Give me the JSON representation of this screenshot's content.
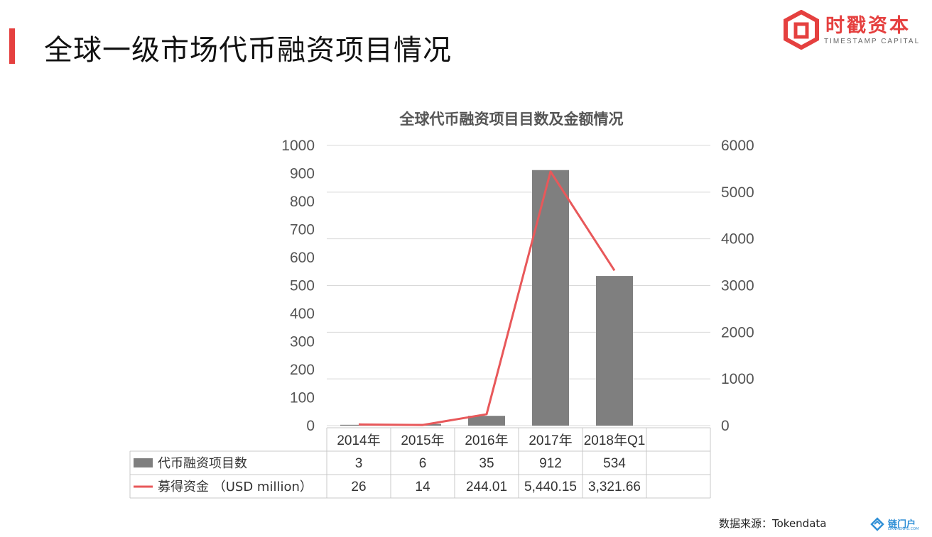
{
  "slide": {
    "title": "全球一级市场代币融资项目情况",
    "source": "数据来源：Tokendata"
  },
  "logo": {
    "name": "时戳资本",
    "subtitle": "TIMESTAMP CAPITAL",
    "color": "#e5403f"
  },
  "footer_logo": {
    "name": "链门户",
    "subtitle": "LIANMENHU.COM"
  },
  "chart_data": {
    "type": "bar",
    "title": "全球代币融资项目目数及金额情况",
    "categories": [
      "2014年",
      "2015年",
      "2016年",
      "2017年",
      "2018年Q1"
    ],
    "series": [
      {
        "name": "代币融资项目数",
        "kind": "bar",
        "axis": "left",
        "color": "#7f7f7f",
        "values": [
          3,
          6,
          35,
          912,
          534
        ],
        "labels": [
          "3",
          "6",
          "35",
          "912",
          "534"
        ]
      },
      {
        "name": "募得资金 （USD million）",
        "kind": "line",
        "axis": "right",
        "color": "#e8585a",
        "values": [
          26,
          14,
          244.01,
          5440.15,
          3321.66
        ],
        "labels": [
          "26",
          "14",
          "244.01",
          "5,440.15",
          "3,321.66"
        ]
      }
    ],
    "y_left": {
      "range": [
        0,
        1000
      ],
      "ticks": [
        "0",
        "100",
        "200",
        "300",
        "400",
        "500",
        "600",
        "700",
        "800",
        "900",
        "1000"
      ]
    },
    "y_right": {
      "range": [
        0,
        6000
      ],
      "ticks": [
        "0",
        "1000",
        "2000",
        "3000",
        "4000",
        "5000",
        "6000"
      ]
    },
    "grid": true,
    "legend": "data-table"
  }
}
